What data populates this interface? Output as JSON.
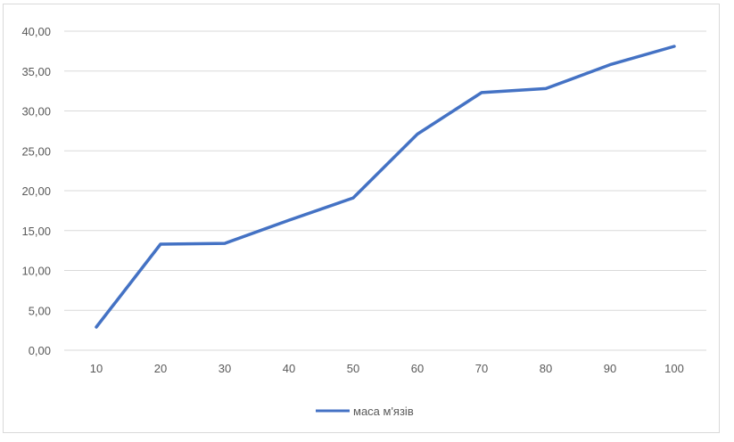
{
  "chart_data": {
    "type": "line",
    "x": [
      10,
      20,
      30,
      40,
      50,
      60,
      70,
      80,
      90,
      100
    ],
    "categories": [
      "10",
      "20",
      "30",
      "40",
      "50",
      "60",
      "70",
      "80",
      "90",
      "100"
    ],
    "series": [
      {
        "name": "маса м'язів",
        "color": "#4472c4",
        "values": [
          2.9,
          13.3,
          13.4,
          16.3,
          19.1,
          27.1,
          32.3,
          32.8,
          35.8,
          38.1
        ]
      }
    ],
    "y_ticks": [
      "0,00",
      "5,00",
      "10,00",
      "15,00",
      "20,00",
      "25,00",
      "30,00",
      "35,00",
      "40,00"
    ],
    "ylim": [
      0,
      40
    ],
    "grid": true,
    "legend_position": "bottom",
    "title": "",
    "xlabel": "",
    "ylabel": ""
  }
}
